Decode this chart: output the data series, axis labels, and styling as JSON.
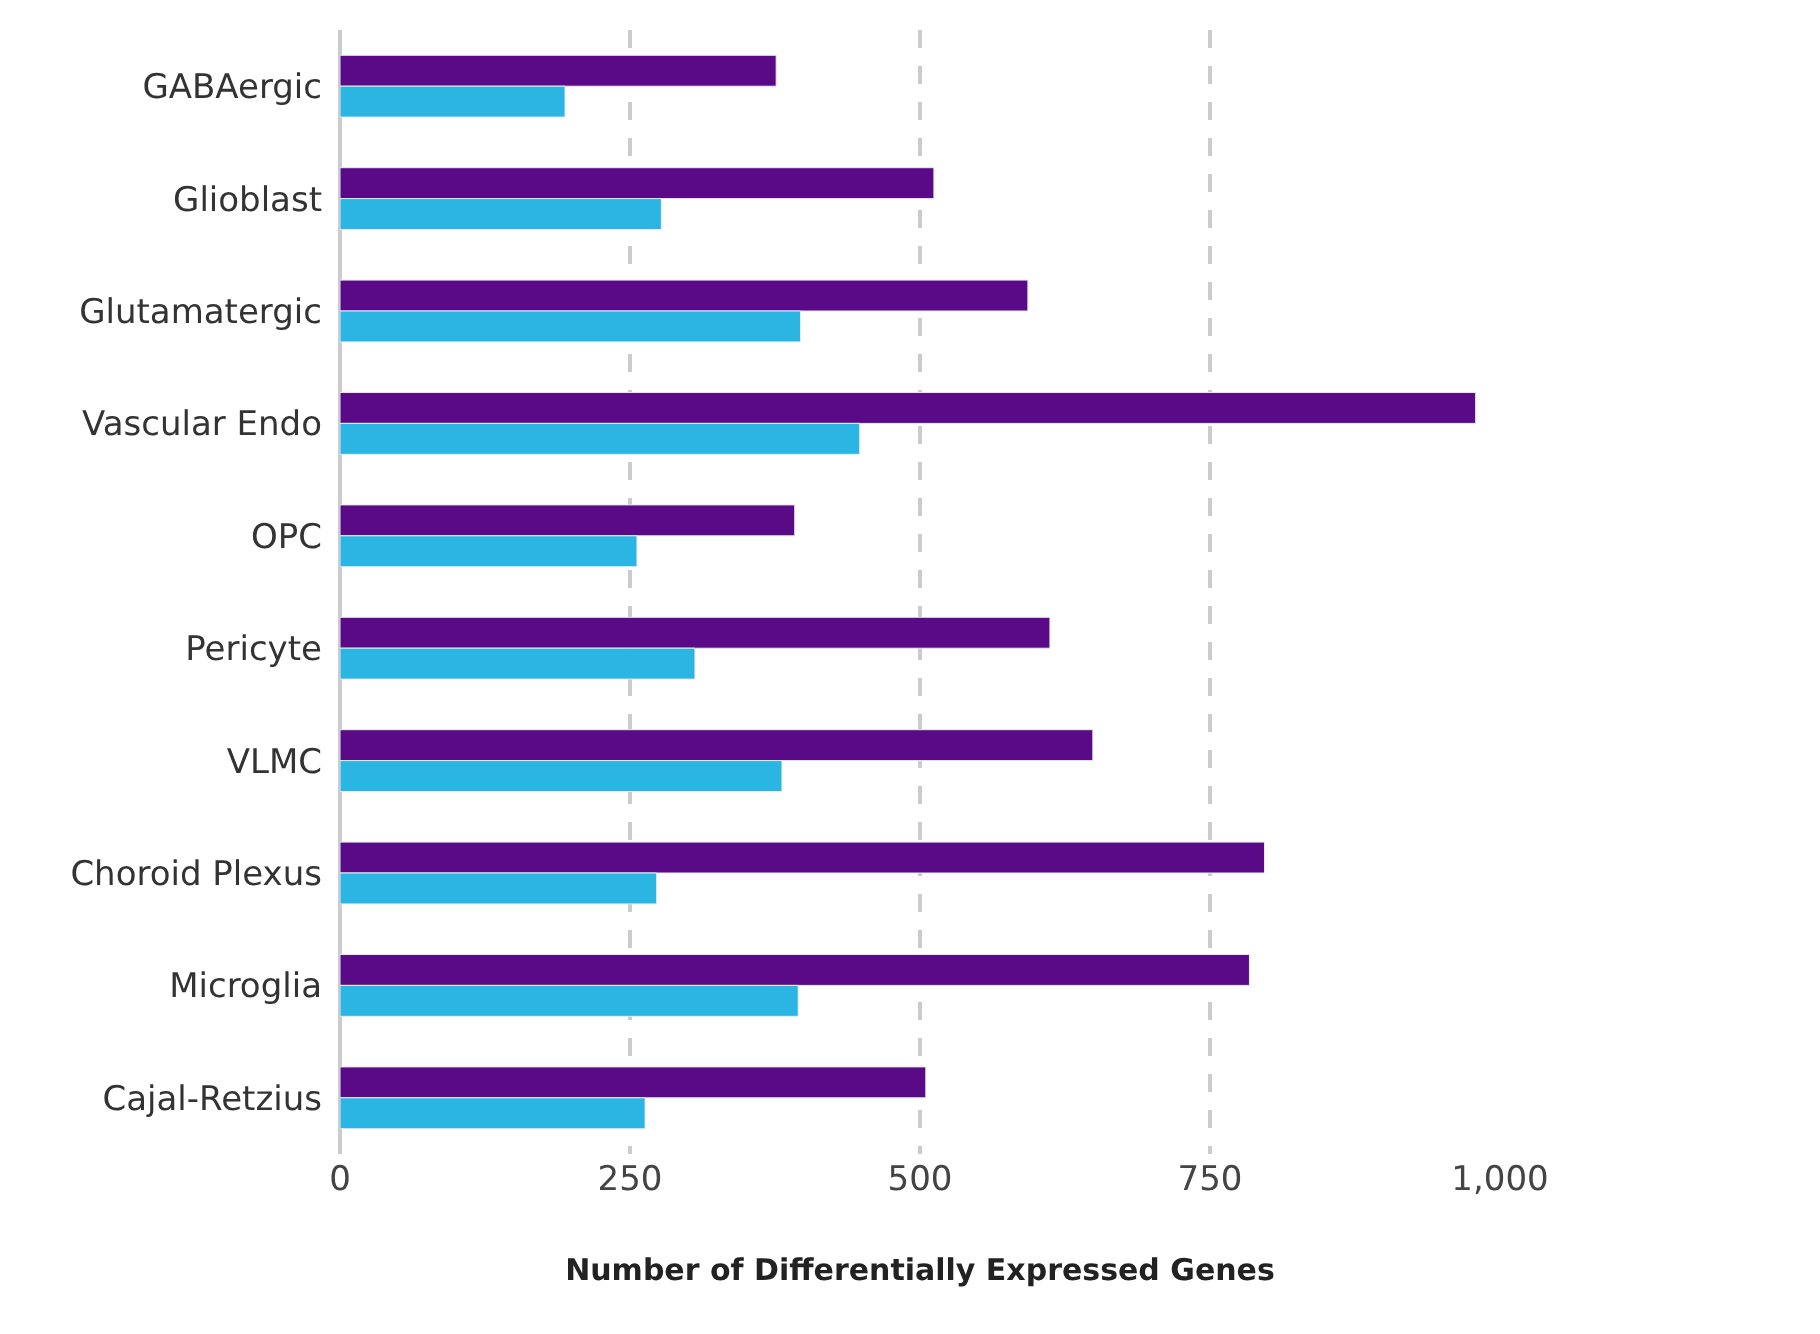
{
  "chart_data": {
    "type": "bar",
    "orientation": "horizontal",
    "xlabel": "Number of Differentially Expressed Genes",
    "categories": [
      "GABAergic",
      "Glioblast",
      "Glutamatergic",
      "Vascular Endo",
      "OPC",
      "Pericyte",
      "VLMC",
      "Choroid Plexus",
      "Microglia",
      "Cajal-Retzius"
    ],
    "series": [
      {
        "color": "#5a0a87",
        "values": [
          376,
          512,
          593,
          979,
          392,
          612,
          649,
          797,
          784,
          505
        ]
      },
      {
        "color": "#2bb5e3",
        "values": [
          194,
          277,
          397,
          448,
          256,
          306,
          381,
          273,
          395,
          263
        ]
      }
    ],
    "xlim": [
      0,
      1000
    ],
    "xticks": [
      0,
      250,
      500,
      750,
      {
        "value": 1000,
        "label": "1,000"
      }
    ],
    "grid": "x"
  }
}
